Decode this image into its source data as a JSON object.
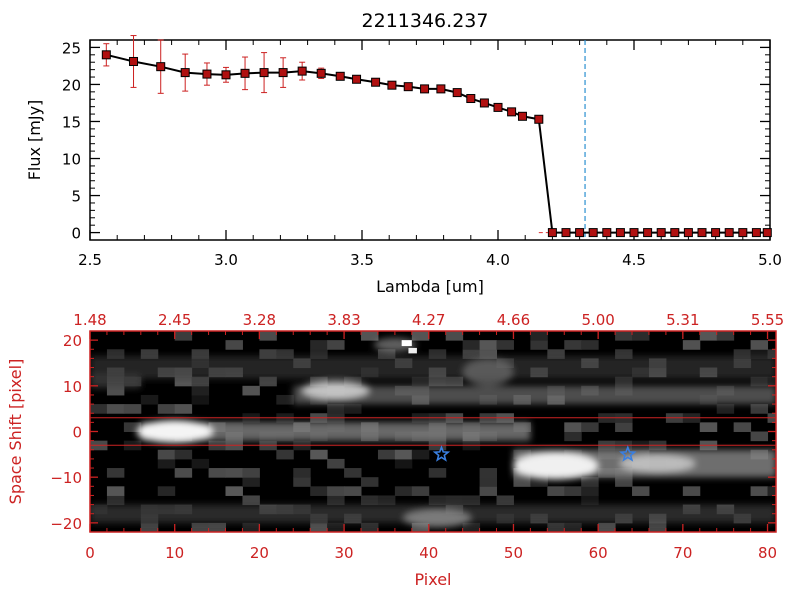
{
  "title": "2211346.237",
  "colors": {
    "axis": "#000000",
    "data_line": "#000000",
    "marker_fill": "#b01010",
    "errorbar": "#cc2020",
    "cutoff_line": "#2a8fd0",
    "image_axis": "#cc2222",
    "aperture_line": "#cc2222",
    "star_marker": "#3a7fe0"
  },
  "chart_data": [
    {
      "type": "line",
      "title": "2211346.237",
      "xlabel": "Lambda [um]",
      "ylabel": "Flux [mJy]",
      "xlim": [
        2.5,
        5.0
      ],
      "ylim": [
        -1,
        26
      ],
      "xticks": [
        2.5,
        3.0,
        3.5,
        4.0,
        4.5,
        5.0
      ],
      "xtick_labels": [
        "2.5",
        "3.0",
        "3.5",
        "4.0",
        "4.5",
        "5.0"
      ],
      "yticks": [
        0,
        5,
        10,
        15,
        20,
        25
      ],
      "ytick_labels": [
        "0",
        "5",
        "10",
        "15",
        "20",
        "25"
      ],
      "grid": false,
      "cutoff_wavelength": 4.32,
      "zero_line_start": 4.15,
      "series": [
        {
          "x": [
            2.56,
            2.66,
            2.76,
            2.85,
            2.93,
            3.0,
            3.07,
            3.14,
            3.21,
            3.28,
            3.35,
            3.42,
            3.48,
            3.55,
            3.61,
            3.67,
            3.73,
            3.79,
            3.85,
            3.9,
            3.95,
            4.0,
            4.05,
            4.09,
            4.15,
            4.2,
            4.25,
            4.3,
            4.35,
            4.4,
            4.45,
            4.5,
            4.55,
            4.6,
            4.65,
            4.7,
            4.75,
            4.8,
            4.85,
            4.9,
            4.95,
            4.99
          ],
          "y": [
            24.0,
            23.1,
            22.4,
            21.6,
            21.4,
            21.3,
            21.5,
            21.6,
            21.6,
            21.8,
            21.5,
            21.1,
            20.7,
            20.3,
            19.9,
            19.7,
            19.4,
            19.4,
            18.9,
            18.1,
            17.5,
            16.9,
            16.3,
            15.7,
            15.3,
            0,
            0,
            0,
            0,
            0,
            0,
            0,
            0,
            0,
            0,
            0,
            0,
            0,
            0,
            0,
            0,
            0
          ],
          "yerr": [
            1.5,
            3.5,
            3.6,
            2.5,
            1.5,
            1.0,
            2.2,
            2.7,
            2.0,
            1.2,
            0.7,
            0.4,
            0.3,
            0.3,
            0.2,
            0.2,
            0.2,
            0.2,
            0.2,
            0.2,
            0.2,
            0.2,
            0.2,
            0.2,
            0.2,
            0,
            0,
            0,
            0,
            0,
            0,
            0,
            0,
            0,
            0,
            0,
            0,
            0,
            0,
            0,
            0,
            0
          ]
        }
      ]
    },
    {
      "type": "heatmap",
      "xlabel": "Pixel",
      "ylabel": "Space Shift [pixel]",
      "xlim": [
        0,
        81
      ],
      "ylim": [
        -22,
        22
      ],
      "xticks": [
        0,
        10,
        20,
        30,
        40,
        50,
        60,
        70,
        80
      ],
      "xtick_labels": [
        "0",
        "10",
        "20",
        "30",
        "40",
        "50",
        "60",
        "70",
        "80"
      ],
      "yticks": [
        -20,
        -10,
        0,
        10,
        20
      ],
      "ytick_labels": [
        "−20",
        "−10",
        "0",
        "10",
        "20"
      ],
      "top_ticks": [
        0,
        10,
        20,
        30,
        40,
        50,
        60,
        70,
        80
      ],
      "top_tick_labels": [
        "1.48",
        "2.45",
        "3.28",
        "3.83",
        "4.27",
        "4.66",
        "5.00",
        "5.31",
        "5.55"
      ],
      "aperture_lines": [
        3,
        -3
      ],
      "stars": [
        {
          "x": 41.5,
          "y": -5
        },
        {
          "x": 63.5,
          "y": -5
        }
      ]
    }
  ]
}
